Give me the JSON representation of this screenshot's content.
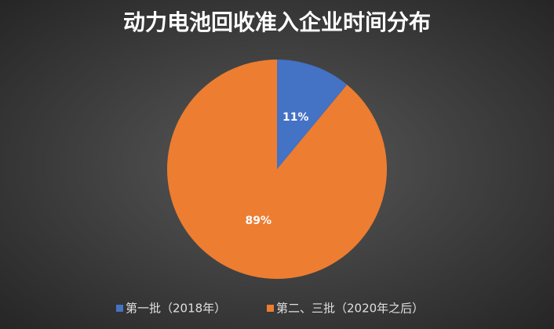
{
  "chart_data": {
    "type": "pie",
    "title": "动力电池回收准入企业时间分布",
    "categories": [
      "第一批（2018年）",
      "第二、三批（2020年之后）"
    ],
    "values": [
      11,
      89
    ],
    "value_labels": [
      "11%",
      "89%"
    ],
    "colors": [
      "#4472c4",
      "#ed7d31"
    ],
    "legend": "bottom"
  }
}
